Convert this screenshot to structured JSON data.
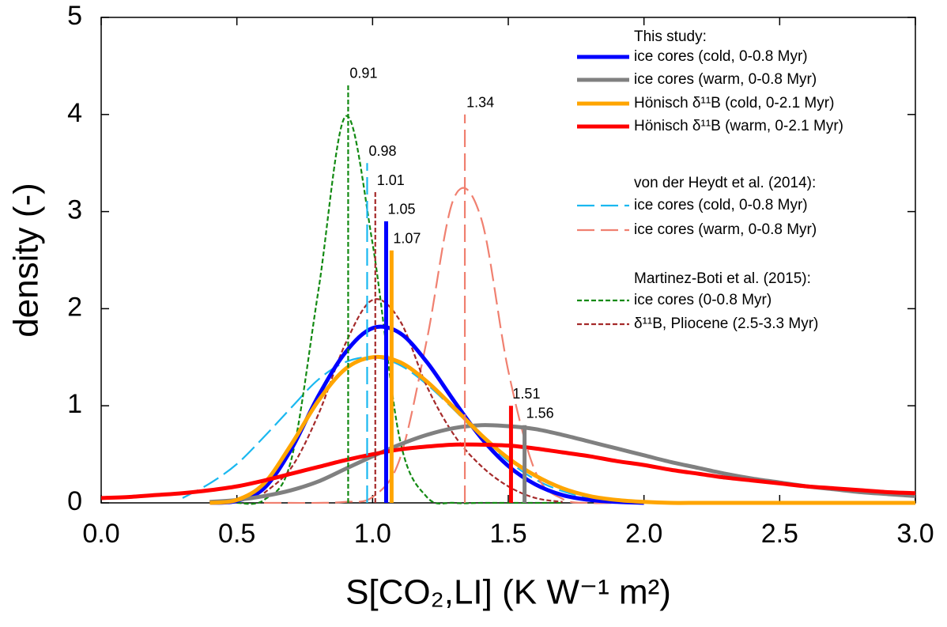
{
  "chart_data": {
    "type": "line",
    "xlabel": "S[CO₂,LI] (K W⁻¹ m²)",
    "ylabel": "density (-)",
    "x": [
      0,
      0.1,
      0.2,
      0.3,
      0.4,
      0.5,
      0.6,
      0.7,
      0.8,
      0.9,
      1.0,
      1.1,
      1.2,
      1.3,
      1.4,
      1.5,
      1.6,
      1.7,
      1.8,
      1.9,
      2.0,
      2.1,
      2.2,
      2.3,
      2.4,
      2.5,
      2.6,
      2.7,
      2.8,
      2.9,
      3.0
    ],
    "xlim": [
      0,
      3
    ],
    "ylim": [
      0,
      5
    ],
    "xticks": [
      {
        "value": 0,
        "label": "0.0"
      },
      {
        "value": 0.5,
        "label": "0.5"
      },
      {
        "value": 1,
        "label": "1.0"
      },
      {
        "value": 1.5,
        "label": "1.5"
      },
      {
        "value": 2,
        "label": "2.0"
      },
      {
        "value": 2.5,
        "label": "2.5"
      },
      {
        "value": 3,
        "label": "3.0"
      }
    ],
    "yticks": [
      0,
      1,
      2,
      3,
      4,
      5
    ],
    "grid": false,
    "legend": "upper right",
    "series_groups": [
      {
        "title": "This study:",
        "series": [
          {
            "name": "ice cores (cold, 0-0.8 Myr)",
            "color": "#0000ff",
            "dash": "solid",
            "values": [
              null,
              null,
              null,
              null,
              0,
              0.02,
              0.15,
              0.55,
              1.1,
              1.55,
              1.8,
              1.75,
              1.45,
              1.05,
              0.67,
              0.38,
              0.19,
              0.08,
              0.03,
              0.01,
              0,
              null,
              null,
              null,
              null,
              null,
              null,
              null,
              null,
              null,
              null
            ],
            "median": {
              "x": 1.05,
              "top": 2.9
            }
          },
          {
            "name": "ice cores (warm, 0-0.8 Myr)",
            "color": "#808080",
            "dash": "solid",
            "values": [
              null,
              null,
              null,
              null,
              0.01,
              0.03,
              0.07,
              0.13,
              0.22,
              0.35,
              0.48,
              0.6,
              0.7,
              0.77,
              0.8,
              0.79,
              0.76,
              0.7,
              0.63,
              0.56,
              0.49,
              0.42,
              0.36,
              0.3,
              0.25,
              0.21,
              0.17,
              0.14,
              0.11,
              0.09,
              0.07
            ],
            "median": {
              "x": 1.56,
              "top": 0.8
            }
          },
          {
            "name": "Hönisch δ¹¹B (cold, 0-2.1 Myr)",
            "color": "#ffa500",
            "dash": "solid",
            "values": [
              null,
              null,
              null,
              null,
              0,
              0.03,
              0.2,
              0.6,
              1.05,
              1.38,
              1.5,
              1.45,
              1.25,
              0.98,
              0.7,
              0.46,
              0.28,
              0.15,
              0.07,
              0.03,
              0.01,
              0,
              0,
              0,
              0,
              0,
              0,
              0,
              0,
              0,
              0
            ],
            "median": {
              "x": 1.07,
              "top": 2.6
            }
          },
          {
            "name": "Hönisch δ¹¹B (warm, 0-2.1 Myr)",
            "color": "#ff0000",
            "dash": "solid",
            "values": [
              0.05,
              0.06,
              0.08,
              0.1,
              0.13,
              0.17,
              0.23,
              0.3,
              0.37,
              0.44,
              0.5,
              0.55,
              0.58,
              0.6,
              0.6,
              0.59,
              0.56,
              0.52,
              0.48,
              0.43,
              0.39,
              0.34,
              0.3,
              0.26,
              0.23,
              0.2,
              0.17,
              0.15,
              0.13,
              0.11,
              0.1
            ],
            "median": {
              "x": 1.51,
              "top": 1.0
            }
          }
        ]
      },
      {
        "title": "von der Heydt et al. (2014):",
        "series": [
          {
            "name": "ice cores (cold, 0-0.8 Myr)",
            "color": "#1ab8f0",
            "dash": "long",
            "values": [
              null,
              null,
              null,
              0.05,
              0.2,
              0.4,
              0.68,
              0.98,
              1.27,
              1.45,
              1.5,
              1.42,
              1.22,
              0.96,
              0.68,
              0.43,
              0.24,
              0.12,
              0.05,
              0.02,
              0,
              null,
              null,
              null,
              null,
              null,
              null,
              null,
              null,
              null,
              null
            ],
            "median": {
              "x": 0.98,
              "top": 3.5
            }
          },
          {
            "name": "ice cores (warm, 0-0.8 Myr)",
            "color": "#f08070",
            "dash": "long",
            "values": [
              null,
              null,
              null,
              null,
              null,
              null,
              0,
              0,
              0,
              0.01,
              0.06,
              0.45,
              1.68,
              3.14,
              2.93,
              1.36,
              0.32,
              0.04,
              0,
              0,
              null,
              null,
              null,
              null,
              null,
              null,
              null,
              null,
              null,
              null,
              null
            ],
            "median": {
              "x": 1.34,
              "top": 4.0
            }
          }
        ]
      },
      {
        "title": "Martinez-Boti et al. (2015):",
        "series": [
          {
            "name": "ice cores (0-0.8 Myr)",
            "color": "#138a13",
            "dash": "short",
            "values": [
              null,
              null,
              null,
              null,
              null,
              0,
              0.03,
              0.44,
              2.18,
              3.98,
              2.67,
              0.66,
              0.06,
              0,
              0,
              0,
              0,
              0,
              null,
              null,
              null,
              null,
              null,
              null,
              null,
              null,
              null,
              null,
              null,
              null,
              null
            ],
            "median": {
              "x": 0.91,
              "top": 4.3
            }
          },
          {
            "name": "δ¹¹B, Pliocene (2.5-3.3 Myr)",
            "color": "#a52a2a",
            "dash": "short",
            "values": [
              null,
              null,
              null,
              null,
              null,
              null,
              0.1,
              0.36,
              0.91,
              1.64,
              2.09,
              1.88,
              1.2,
              0.7,
              0.38,
              0.17,
              0.05,
              0.01,
              null,
              null,
              null,
              null,
              null,
              null,
              null,
              null,
              null,
              null,
              null,
              null,
              null
            ],
            "median": {
              "x": 1.01,
              "top": 3.2
            }
          }
        ]
      }
    ]
  }
}
